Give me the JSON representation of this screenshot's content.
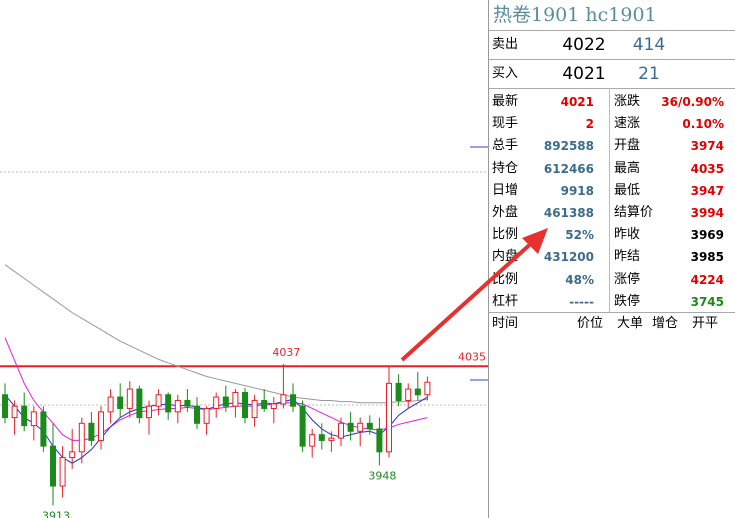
{
  "chart_data": {
    "type": "candlestick",
    "ylim": [
      3902,
      4356
    ],
    "candles": [
      [
        4010,
        4020,
        3985,
        3990
      ],
      [
        3990,
        4005,
        3975,
        4000
      ],
      [
        4000,
        4012,
        3978,
        3983
      ],
      [
        3983,
        4000,
        3970,
        3995
      ],
      [
        3995,
        4000,
        3960,
        3965
      ],
      [
        3965,
        3985,
        3913,
        3930
      ],
      [
        3930,
        3965,
        3920,
        3955
      ],
      [
        3955,
        3980,
        3945,
        3960
      ],
      [
        3960,
        3990,
        3950,
        3985
      ],
      [
        3985,
        3995,
        3965,
        3970
      ],
      [
        3970,
        4000,
        3962,
        3995
      ],
      [
        3995,
        4015,
        3985,
        4008
      ],
      [
        4008,
        4020,
        3990,
        3998
      ],
      [
        3998,
        4022,
        3990,
        4015
      ],
      [
        4015,
        4018,
        3985,
        3990
      ],
      [
        3990,
        4005,
        3975,
        4000
      ],
      [
        4000,
        4015,
        3992,
        4010
      ],
      [
        4010,
        4012,
        3988,
        3995
      ],
      [
        3995,
        4010,
        3985,
        4005
      ],
      [
        4005,
        4015,
        3995,
        4000
      ],
      [
        4000,
        4008,
        3980,
        3985
      ],
      [
        3985,
        4000,
        3975,
        3998
      ],
      [
        3998,
        4012,
        3990,
        4008
      ],
      [
        4008,
        4018,
        3995,
        4000
      ],
      [
        4000,
        4015,
        3990,
        4012
      ],
      [
        4012,
        4016,
        3985,
        3990
      ],
      [
        3990,
        4010,
        3982,
        4005
      ],
      [
        4005,
        4015,
        3995,
        3998
      ],
      [
        3998,
        4008,
        3985,
        4002
      ],
      [
        4002,
        4037,
        3998,
        4010
      ],
      [
        4010,
        4020,
        3995,
        4000
      ],
      [
        4000,
        4005,
        3960,
        3965
      ],
      [
        3965,
        3980,
        3955,
        3975
      ],
      [
        3975,
        3985,
        3962,
        3970
      ],
      [
        3970,
        3978,
        3960,
        3972
      ],
      [
        3972,
        3990,
        3965,
        3985
      ],
      [
        3985,
        3995,
        3970,
        3978
      ],
      [
        3978,
        3990,
        3965,
        3985
      ],
      [
        3985,
        3992,
        3975,
        3980
      ],
      [
        3980,
        3990,
        3948,
        3960
      ],
      [
        3960,
        4035,
        3955,
        4020
      ],
      [
        4020,
        4028,
        4000,
        4005
      ],
      [
        4005,
        4020,
        3998,
        4015
      ],
      [
        4015,
        4030,
        4005,
        4010
      ],
      [
        4010,
        4026,
        4005,
        4021
      ]
    ],
    "up_color": "#e8202a",
    "down_color": "#1a8a1a",
    "lines": [
      {
        "color": "#999999",
        "values": [
          4124,
          4118,
          4112,
          4106,
          4100,
          4094,
          4088,
          4082,
          4077,
          4072,
          4067,
          4062,
          4057,
          4053,
          4049,
          4045,
          4041,
          4038,
          4035,
          4032,
          4029,
          4026,
          4024,
          4022,
          4020,
          4018,
          4016,
          4014,
          4012,
          4010,
          4008,
          4007,
          4006,
          4005,
          4005,
          4004,
          4004,
          4003,
          4003,
          4003,
          4003,
          4004,
          4004,
          4005,
          4006
        ]
      },
      {
        "color": "#e020e0",
        "values": [
          4060,
          4040,
          4020,
          4005,
          3995,
          3985,
          3975,
          3970,
          3970,
          3972,
          3976,
          3982,
          3988,
          3992,
          3995,
          3996,
          3997,
          3998,
          3998,
          3999,
          3998,
          3997,
          3998,
          3999,
          4000,
          4000,
          4000,
          4001,
          4002,
          4003,
          4003,
          4002,
          3998,
          3994,
          3990,
          3986,
          3983,
          3981,
          3980,
          3979,
          3981,
          3984,
          3986,
          3988,
          3990
        ]
      },
      {
        "color": "#2030d0",
        "values": [
          4010,
          4000,
          3990,
          3985,
          3978,
          3965,
          3955,
          3950,
          3955,
          3962,
          3972,
          3982,
          3990,
          3995,
          3998,
          4000,
          4001,
          4002,
          4000,
          4001,
          3999,
          3997,
          4000,
          4002,
          4003,
          4002,
          4001,
          4003,
          4002,
          4004,
          4006,
          3998,
          3988,
          3980,
          3975,
          3973,
          3975,
          3977,
          3978,
          3975,
          3982,
          3992,
          3998,
          4003,
          4008
        ]
      }
    ],
    "hline": 4035,
    "marked_prices": [
      4037,
      3948,
      3913
    ]
  },
  "header": {
    "title": "热卷1901  hc1901"
  },
  "quote": [
    [
      "卖出",
      "4022",
      "414"
    ],
    [
      "买入",
      "4021",
      "21"
    ]
  ],
  "stats": [
    [
      "最新",
      "4021",
      "涨跌",
      "36/0.90%"
    ],
    [
      "现手",
      "2",
      "速涨",
      "0.10%"
    ],
    [
      "总手",
      "892588",
      "开盘",
      "3974"
    ],
    [
      "持仓",
      "612466",
      "最高",
      "4035"
    ],
    [
      "日增",
      "9918",
      "最低",
      "3947"
    ],
    [
      "外盘",
      "461388",
      "结算价",
      "3994"
    ],
    [
      "比例",
      "52%",
      "昨收",
      "3969"
    ],
    [
      "内盘",
      "431200",
      "昨结",
      "3985"
    ],
    [
      "比例",
      "48%",
      "涨停",
      "4224"
    ],
    [
      "杠杆",
      "-----",
      "跌停",
      "3745"
    ]
  ],
  "ticks_header": [
    "时间",
    "价位",
    "大单",
    "增仓",
    "开平"
  ]
}
